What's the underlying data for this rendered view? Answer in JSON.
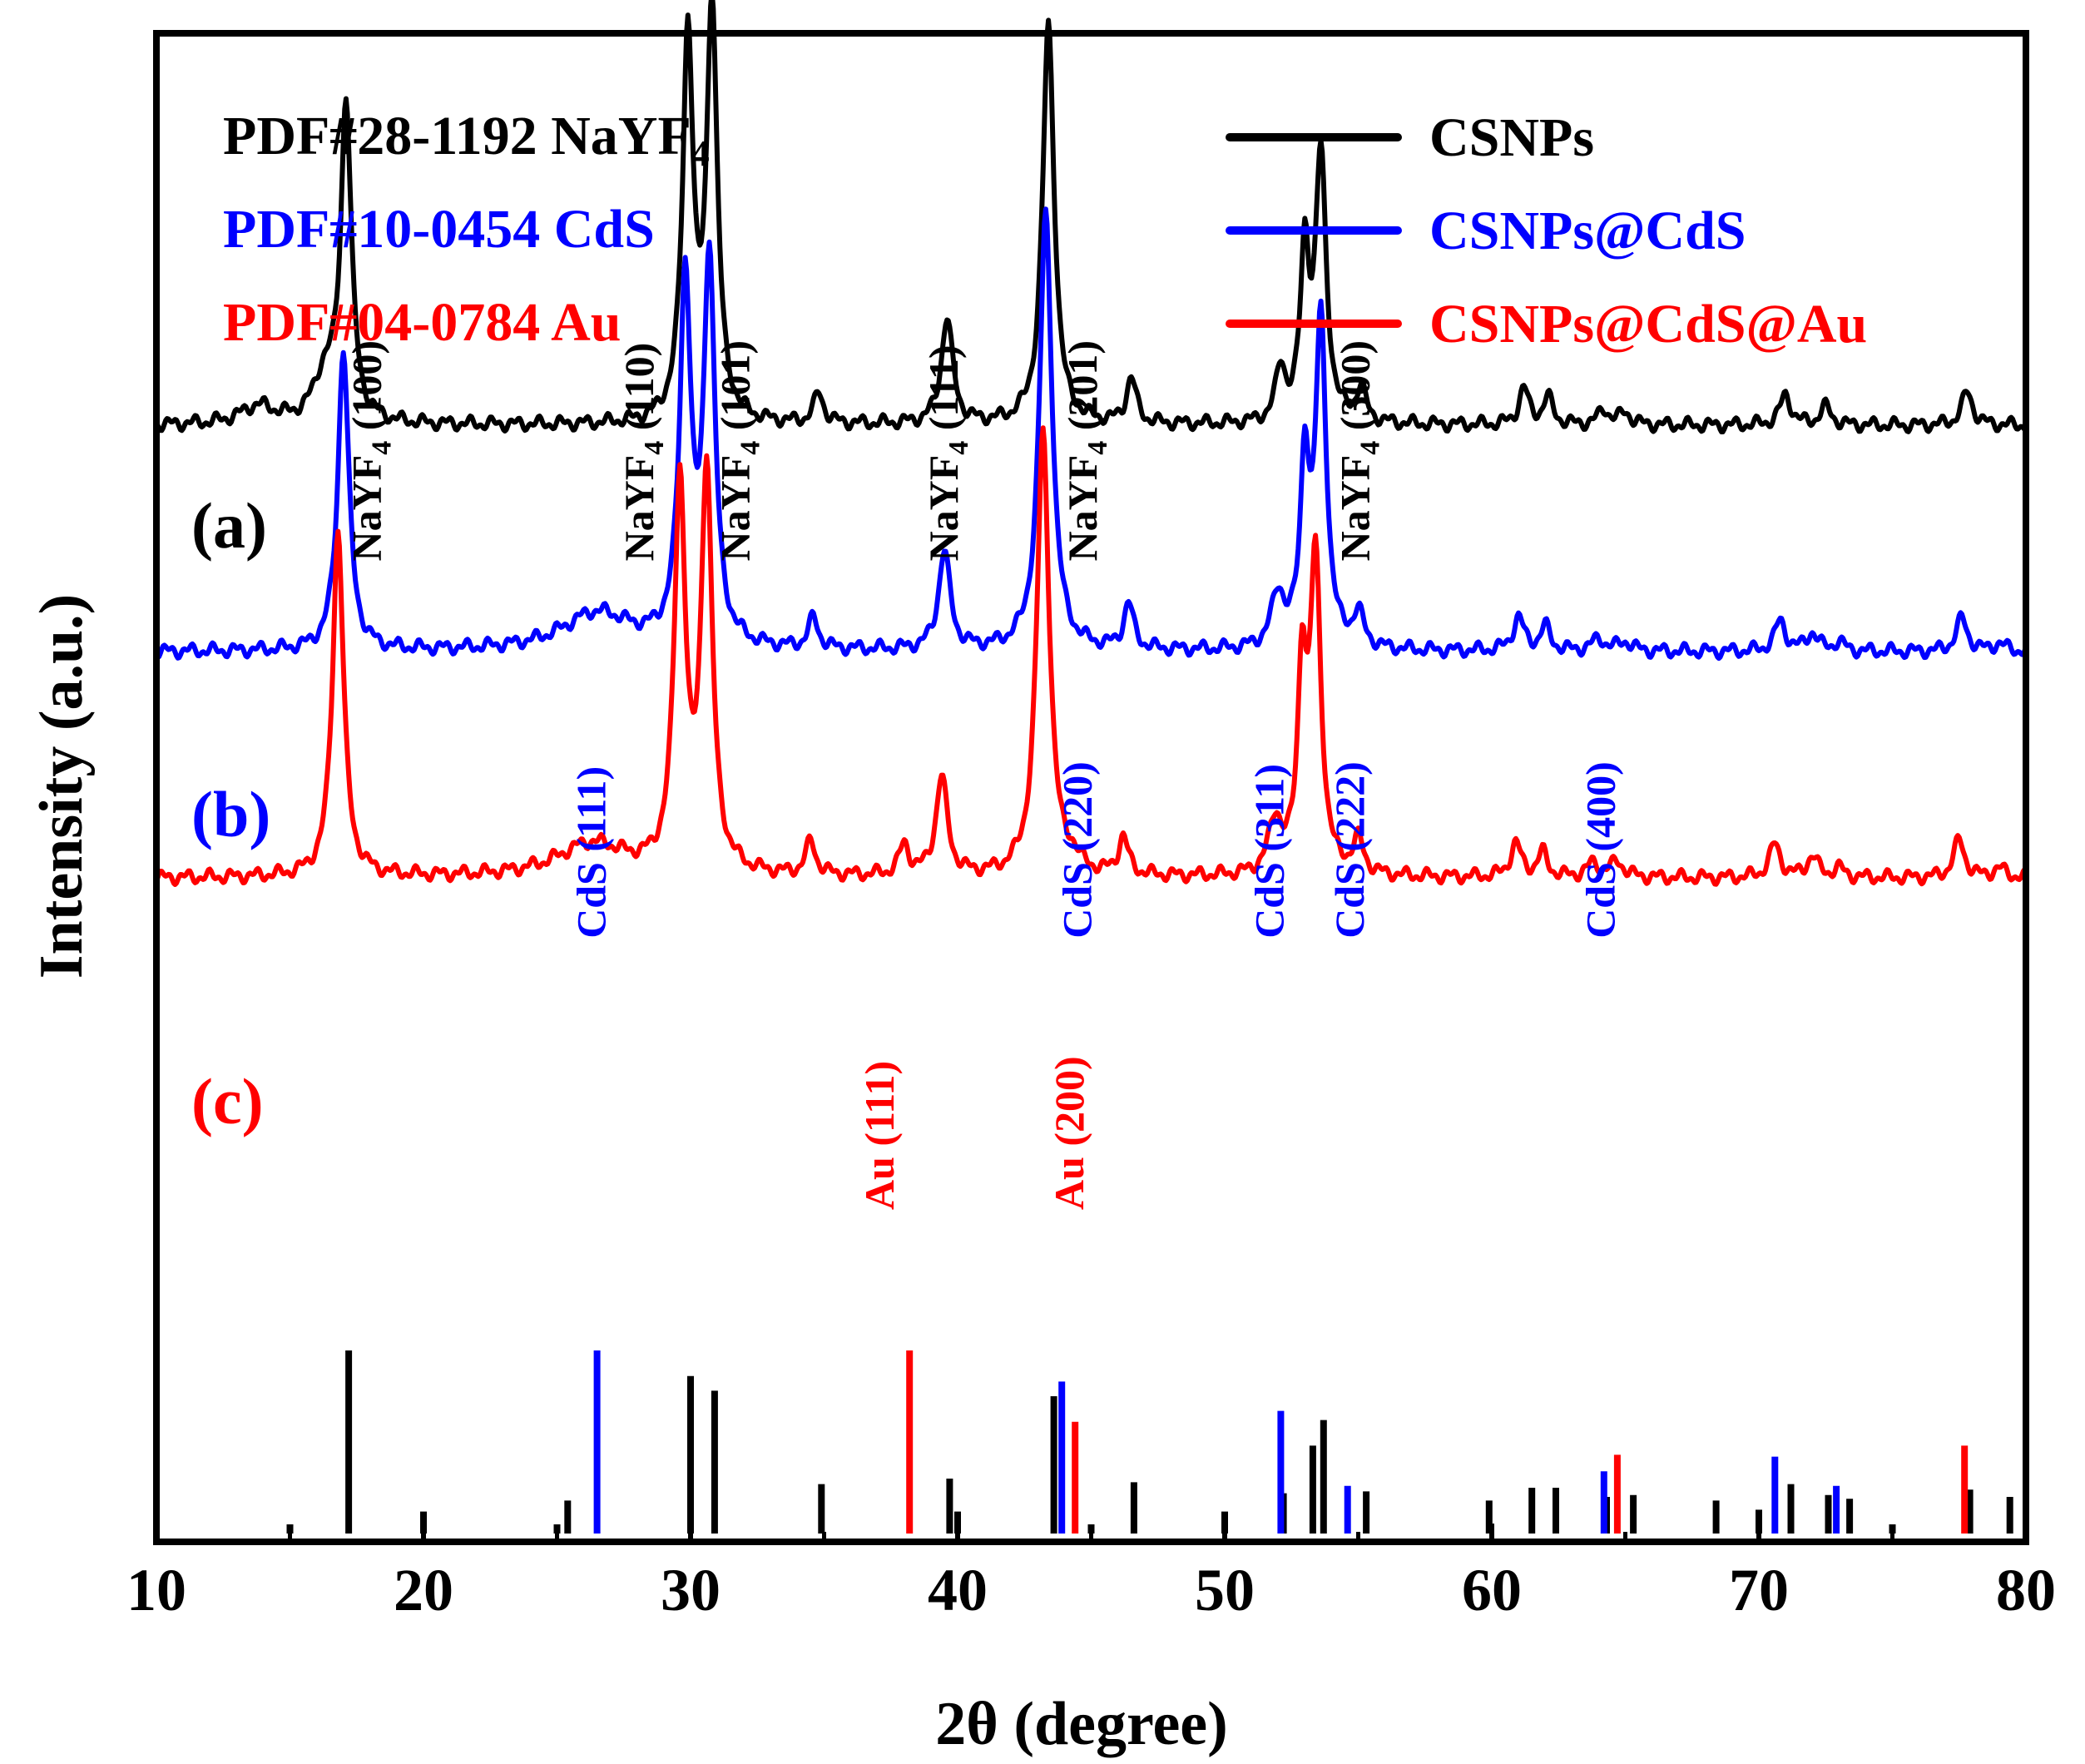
{
  "chart_data": {
    "type": "line",
    "xlabel": "2θ (degree)",
    "ylabel": "Intensity (a.u.)",
    "xlim": [
      10,
      80
    ],
    "xticks": [
      10,
      20,
      30,
      40,
      50,
      60,
      70,
      80
    ],
    "xtick_labels": [
      "10",
      "20",
      "30",
      "40",
      "50",
      "60",
      "70",
      "80"
    ],
    "legend": {
      "placement": "top-right",
      "entries": [
        {
          "label": "CSNPs",
          "color": "#000000"
        },
        {
          "label": "CSNPs@CdS",
          "color": "#0000ff"
        },
        {
          "label": "CSNPs@CdS@Au",
          "color": "#ff0000"
        }
      ]
    },
    "pdf_references": [
      {
        "code": "PDF#28-1192",
        "phase": "NaYF",
        "subscript": "4",
        "color": "#000000"
      },
      {
        "code": "PDF#10-0454",
        "phase": "CdS",
        "subscript": "",
        "color": "#0000ff"
      },
      {
        "code": "PDF#04-0784",
        "phase": "Au",
        "subscript": "",
        "color": "#ff0000"
      }
    ],
    "series": [
      {
        "name": "CSNPs",
        "panel": "(a)",
        "color": "#000000",
        "baseline": 0.06,
        "peaks": [
          {
            "x": 13.8,
            "h": 0.012,
            "w": 0.8
          },
          {
            "x": 16.3,
            "h": 0.03,
            "w": 0.5
          },
          {
            "x": 17.1,
            "h": 0.21,
            "w": 0.24
          },
          {
            "x": 29.9,
            "h": 0.255,
            "w": 0.24
          },
          {
            "x": 30.8,
            "h": 0.275,
            "w": 0.24
          },
          {
            "x": 34.8,
            "h": 0.02,
            "w": 0.22
          },
          {
            "x": 39.6,
            "h": 0.07,
            "w": 0.26
          },
          {
            "x": 43.4,
            "h": 0.265,
            "w": 0.26
          },
          {
            "x": 46.5,
            "h": 0.03,
            "w": 0.22
          },
          {
            "x": 52.1,
            "h": 0.035,
            "w": 0.22
          },
          {
            "x": 53.0,
            "h": 0.11,
            "w": 0.2
          },
          {
            "x": 53.6,
            "h": 0.175,
            "w": 0.24
          },
          {
            "x": 55.1,
            "h": 0.022,
            "w": 0.22
          },
          {
            "x": 61.2,
            "h": 0.024,
            "w": 0.22
          },
          {
            "x": 62.1,
            "h": 0.018,
            "w": 0.22
          },
          {
            "x": 64.2,
            "h": 0.01,
            "w": 0.25
          },
          {
            "x": 65.0,
            "h": 0.008,
            "w": 0.25
          },
          {
            "x": 71.0,
            "h": 0.02,
            "w": 0.25
          },
          {
            "x": 72.5,
            "h": 0.012,
            "w": 0.25
          },
          {
            "x": 77.8,
            "h": 0.022,
            "w": 0.25
          }
        ]
      },
      {
        "name": "CSNPs@CdS",
        "panel": "(b)",
        "color": "#0000ff",
        "baseline": 0.06,
        "peaks": [
          {
            "x": 17.0,
            "h": 0.2,
            "w": 0.25
          },
          {
            "x": 26.5,
            "h": 0.025,
            "w": 1.6
          },
          {
            "x": 29.8,
            "h": 0.24,
            "w": 0.25
          },
          {
            "x": 30.7,
            "h": 0.255,
            "w": 0.25
          },
          {
            "x": 34.6,
            "h": 0.02,
            "w": 0.22
          },
          {
            "x": 39.5,
            "h": 0.065,
            "w": 0.26
          },
          {
            "x": 43.3,
            "h": 0.29,
            "w": 0.28
          },
          {
            "x": 46.4,
            "h": 0.03,
            "w": 0.22
          },
          {
            "x": 52.0,
            "h": 0.035,
            "w": 0.3
          },
          {
            "x": 53.0,
            "h": 0.12,
            "w": 0.2
          },
          {
            "x": 53.6,
            "h": 0.215,
            "w": 0.24
          },
          {
            "x": 55.0,
            "h": 0.022,
            "w": 0.25
          },
          {
            "x": 61.0,
            "h": 0.022,
            "w": 0.25
          },
          {
            "x": 62.0,
            "h": 0.016,
            "w": 0.22
          },
          {
            "x": 64.0,
            "h": 0.008,
            "w": 0.3
          },
          {
            "x": 65.0,
            "h": 0.006,
            "w": 0.3
          },
          {
            "x": 70.8,
            "h": 0.02,
            "w": 0.25
          },
          {
            "x": 72.0,
            "h": 0.012,
            "w": 0.25
          },
          {
            "x": 73.0,
            "h": 0.006,
            "w": 0.25
          },
          {
            "x": 77.6,
            "h": 0.022,
            "w": 0.25
          },
          {
            "x": 79.0,
            "h": 0.005,
            "w": 0.3
          }
        ]
      },
      {
        "name": "CSNPs@CdS@Au",
        "panel": "(c)",
        "color": "#ff0000",
        "baseline": 0.06,
        "peaks": [
          {
            "x": 16.8,
            "h": 0.23,
            "w": 0.25
          },
          {
            "x": 26.3,
            "h": 0.022,
            "w": 1.6
          },
          {
            "x": 29.6,
            "h": 0.255,
            "w": 0.25
          },
          {
            "x": 30.6,
            "h": 0.265,
            "w": 0.25
          },
          {
            "x": 34.5,
            "h": 0.022,
            "w": 0.22
          },
          {
            "x": 38.0,
            "h": 0.02,
            "w": 0.22
          },
          {
            "x": 39.4,
            "h": 0.065,
            "w": 0.26
          },
          {
            "x": 43.2,
            "h": 0.295,
            "w": 0.28
          },
          {
            "x": 44.3,
            "h": 0.008,
            "w": 0.3
          },
          {
            "x": 46.2,
            "h": 0.025,
            "w": 0.22
          },
          {
            "x": 51.9,
            "h": 0.035,
            "w": 0.3
          },
          {
            "x": 52.9,
            "h": 0.13,
            "w": 0.2
          },
          {
            "x": 53.4,
            "h": 0.205,
            "w": 0.24
          },
          {
            "x": 55.0,
            "h": 0.022,
            "w": 0.25
          },
          {
            "x": 60.9,
            "h": 0.022,
            "w": 0.25
          },
          {
            "x": 61.9,
            "h": 0.016,
            "w": 0.22
          },
          {
            "x": 63.8,
            "h": 0.009,
            "w": 0.3
          },
          {
            "x": 64.7,
            "h": 0.01,
            "w": 0.3
          },
          {
            "x": 70.6,
            "h": 0.022,
            "w": 0.25
          },
          {
            "x": 72.0,
            "h": 0.014,
            "w": 0.25
          },
          {
            "x": 73.0,
            "h": 0.006,
            "w": 0.25
          },
          {
            "x": 77.5,
            "h": 0.025,
            "w": 0.25
          },
          {
            "x": 79.0,
            "h": 0.006,
            "w": 0.3
          }
        ]
      }
    ],
    "reference_lines": {
      "NaYF4": {
        "color": "#000000",
        "lines": [
          {
            "x": 15.0,
            "i": 5
          },
          {
            "x": 17.2,
            "i": 100
          },
          {
            "x": 20.0,
            "i": 12
          },
          {
            "x": 25.0,
            "i": 5
          },
          {
            "x": 25.4,
            "i": 18
          },
          {
            "x": 30.0,
            "i": 86
          },
          {
            "x": 30.9,
            "i": 78
          },
          {
            "x": 34.9,
            "i": 27
          },
          {
            "x": 39.7,
            "i": 30
          },
          {
            "x": 40.0,
            "i": 12
          },
          {
            "x": 43.6,
            "i": 75
          },
          {
            "x": 45.0,
            "i": 5
          },
          {
            "x": 46.6,
            "i": 28
          },
          {
            "x": 50.0,
            "i": 12
          },
          {
            "x": 52.2,
            "i": 22
          },
          {
            "x": 53.3,
            "i": 48
          },
          {
            "x": 53.7,
            "i": 62
          },
          {
            "x": 55.3,
            "i": 23
          },
          {
            "x": 59.9,
            "i": 18
          },
          {
            "x": 61.5,
            "i": 25
          },
          {
            "x": 62.4,
            "i": 25
          },
          {
            "x": 64.3,
            "i": 20
          },
          {
            "x": 65.3,
            "i": 21
          },
          {
            "x": 68.4,
            "i": 18
          },
          {
            "x": 70.0,
            "i": 13
          },
          {
            "x": 71.2,
            "i": 27
          },
          {
            "x": 72.6,
            "i": 21
          },
          {
            "x": 73.4,
            "i": 19
          },
          {
            "x": 75.0,
            "i": 5
          },
          {
            "x": 77.9,
            "i": 24
          },
          {
            "x": 79.4,
            "i": 20
          }
        ]
      },
      "CdS": {
        "color": "#0000ff",
        "lines": [
          {
            "x": 26.5,
            "i": 100
          },
          {
            "x": 43.9,
            "i": 83
          },
          {
            "x": 52.1,
            "i": 67
          },
          {
            "x": 54.6,
            "i": 26
          },
          {
            "x": 64.2,
            "i": 34
          },
          {
            "x": 70.6,
            "i": 42
          },
          {
            "x": 72.9,
            "i": 26
          }
        ]
      },
      "Au": {
        "color": "#ff0000",
        "lines": [
          {
            "x": 38.2,
            "i": 100
          },
          {
            "x": 44.4,
            "i": 61
          },
          {
            "x": 64.7,
            "i": 43
          },
          {
            "x": 77.7,
            "i": 48
          }
        ]
      }
    },
    "annotations": [
      {
        "text": "NaYF",
        "sub": "4",
        "suffix": " (100)",
        "x": 18.4,
        "color": "#000000",
        "series": 0
      },
      {
        "text": "NaYF",
        "sub": "4",
        "suffix": " (110)",
        "x": 28.6,
        "color": "#000000",
        "series": 0
      },
      {
        "text": "NaYF",
        "sub": "4",
        "suffix": " (101)",
        "x": 32.2,
        "color": "#000000",
        "series": 0
      },
      {
        "text": "NaYF",
        "sub": "4",
        "suffix": " (111)",
        "x": 40.0,
        "color": "#000000",
        "series": 0
      },
      {
        "text": "NaYF",
        "sub": "4",
        "suffix": " (201)",
        "x": 45.2,
        "color": "#000000",
        "series": 0
      },
      {
        "text": "NaYF",
        "sub": "4",
        "suffix": " (300)",
        "x": 55.4,
        "color": "#000000",
        "series": 0
      },
      {
        "text": "CdS (111)",
        "sub": "",
        "suffix": "",
        "x": 26.8,
        "color": "#0000ff",
        "series": 1
      },
      {
        "text": "CdS (220)",
        "sub": "",
        "suffix": "",
        "x": 45.0,
        "color": "#0000ff",
        "series": 1
      },
      {
        "text": "CdS (311)",
        "sub": "",
        "suffix": "",
        "x": 52.2,
        "color": "#0000ff",
        "series": 1
      },
      {
        "text": "CdS (222)",
        "sub": "",
        "suffix": "",
        "x": 55.2,
        "color": "#0000ff",
        "series": 1
      },
      {
        "text": "CdS (400)",
        "sub": "",
        "suffix": "",
        "x": 64.6,
        "color": "#0000ff",
        "series": 1
      },
      {
        "text": "Au (111)",
        "sub": "",
        "suffix": "",
        "x": 37.6,
        "color": "#ff0000",
        "series": 2
      },
      {
        "text": "Au (200)",
        "sub": "",
        "suffix": "",
        "x": 44.7,
        "color": "#ff0000",
        "series": 2
      }
    ]
  }
}
